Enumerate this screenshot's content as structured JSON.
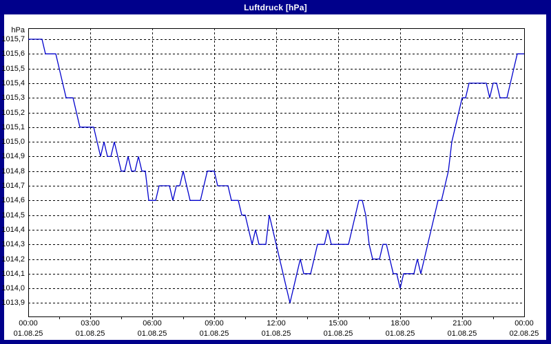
{
  "window": {
    "title": "Luftdruck [hPa]"
  },
  "colors": {
    "window_bg": "#00008B",
    "title_text": "#FFFFFF",
    "plot_bg": "#FFFFFF",
    "grid": "#000000",
    "line": "#0000CC",
    "label_text": "#000000"
  },
  "chart_data": {
    "type": "line",
    "title": "Luftdruck [hPa]",
    "ylabel": "hPa",
    "xlabel": "",
    "grid": "dashed",
    "legend": "none",
    "xlim_hours": [
      0,
      24
    ],
    "ylim": [
      1013.81,
      1015.78
    ],
    "y_axis": {
      "tick_step": 0.1,
      "tick_labels": [
        "1015,7",
        "1015,6",
        "1015,5",
        "1015,4",
        "1015,3",
        "1015,2",
        "1015,1",
        "1015,0",
        "1014,9",
        "1014,8",
        "1014,7",
        "1014,6",
        "1014,5",
        "1014,4",
        "1014,3",
        "1014,2",
        "1014,1",
        "1014,0",
        "1013,9"
      ],
      "tick_values": [
        1015.7,
        1015.6,
        1015.5,
        1015.4,
        1015.3,
        1015.2,
        1015.1,
        1015.0,
        1014.9,
        1014.8,
        1014.7,
        1014.6,
        1014.5,
        1014.4,
        1014.3,
        1014.2,
        1014.1,
        1014.0,
        1013.9
      ]
    },
    "x_axis": {
      "major_tick_hours": 3,
      "minor_tick_hours": 1.5,
      "labels": [
        {
          "time": "00:00",
          "date": "01.08.25"
        },
        {
          "time": "03:00",
          "date": "01.08.25"
        },
        {
          "time": "06:00",
          "date": "01.08.25"
        },
        {
          "time": "09:00",
          "date": "01.08.25"
        },
        {
          "time": "12:00",
          "date": "01.08.25"
        },
        {
          "time": "15:00",
          "date": "01.08.25"
        },
        {
          "time": "18:00",
          "date": "01.08.25"
        },
        {
          "time": "21:00",
          "date": "01.08.25"
        },
        {
          "time": "00:00",
          "date": "02.08.25"
        }
      ]
    },
    "series": [
      {
        "name": "Luftdruck",
        "color": "#0000CC",
        "start_time": "00:00",
        "interval_minutes": 10,
        "values": [
          1015.7,
          1015.7,
          1015.7,
          1015.7,
          1015.7,
          1015.6,
          1015.6,
          1015.6,
          1015.6,
          1015.5,
          1015.4,
          1015.3,
          1015.3,
          1015.3,
          1015.2,
          1015.1,
          1015.1,
          1015.1,
          1015.1,
          1015.1,
          1015.0,
          1014.9,
          1015.0,
          1014.9,
          1014.9,
          1015.0,
          1014.9,
          1014.8,
          1014.8,
          1014.9,
          1014.8,
          1014.8,
          1014.9,
          1014.8,
          1014.8,
          1014.6,
          1014.6,
          1014.6,
          1014.7,
          1014.7,
          1014.7,
          1014.7,
          1014.6,
          1014.7,
          1014.7,
          1014.8,
          1014.7,
          1014.6,
          1014.6,
          1014.6,
          1014.6,
          1014.7,
          1014.8,
          1014.8,
          1014.8,
          1014.7,
          1014.7,
          1014.7,
          1014.7,
          1014.6,
          1014.6,
          1014.6,
          1014.5,
          1014.5,
          1014.4,
          1014.3,
          1014.4,
          1014.3,
          1014.3,
          1014.3,
          1014.5,
          1014.4,
          1014.3,
          1014.2,
          1014.1,
          1014.0,
          1013.9,
          1014.0,
          1014.1,
          1014.2,
          1014.1,
          1014.1,
          1014.1,
          1014.2,
          1014.3,
          1014.3,
          1014.3,
          1014.4,
          1014.3,
          1014.3,
          1014.3,
          1014.3,
          1014.3,
          1014.3,
          1014.4,
          1014.5,
          1014.6,
          1014.6,
          1014.5,
          1014.3,
          1014.2,
          1014.2,
          1014.2,
          1014.3,
          1014.3,
          1014.2,
          1014.1,
          1014.1,
          1014.0,
          1014.1,
          1014.1,
          1014.1,
          1014.1,
          1014.2,
          1014.1,
          1014.2,
          1014.3,
          1014.4,
          1014.5,
          1014.6,
          1014.6,
          1014.7,
          1014.8,
          1015.0,
          1015.1,
          1015.2,
          1015.3,
          1015.3,
          1015.4,
          1015.4,
          1015.4,
          1015.4,
          1015.4,
          1015.4,
          1015.3,
          1015.4,
          1015.4,
          1015.3,
          1015.3,
          1015.3,
          1015.4,
          1015.5,
          1015.6,
          1015.6,
          1015.6
        ]
      }
    ]
  }
}
